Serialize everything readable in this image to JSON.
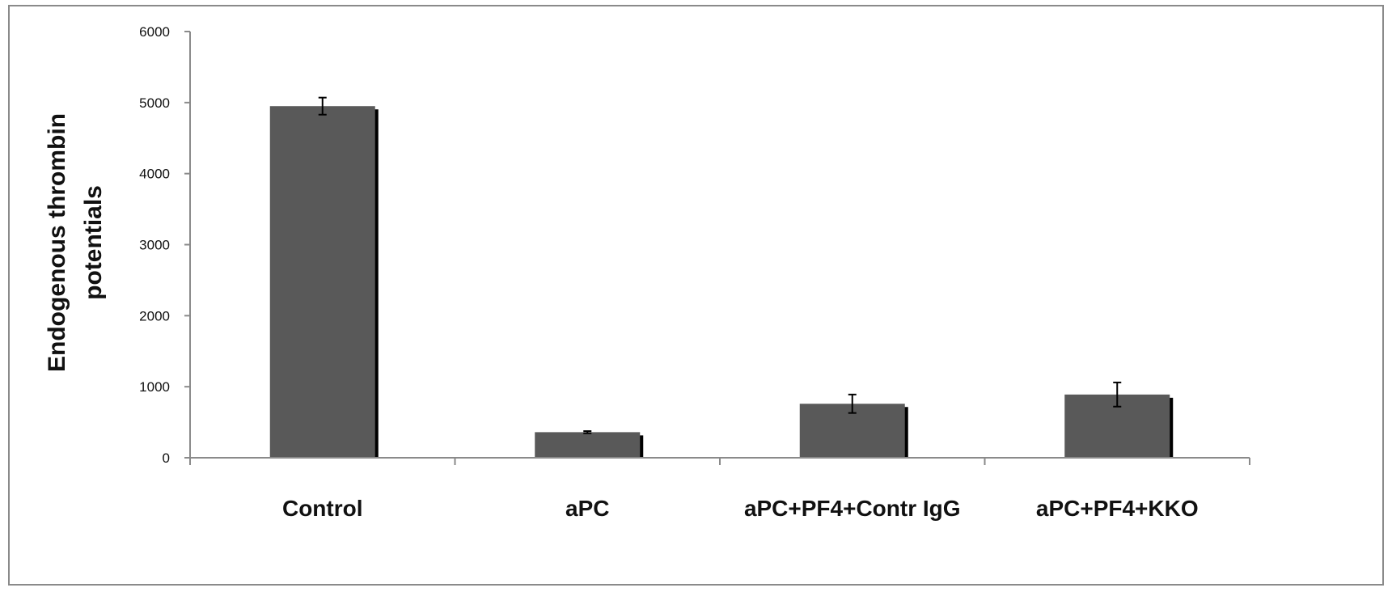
{
  "chart_data": {
    "type": "bar",
    "title": "",
    "xlabel": "",
    "ylabel_lines": [
      "Endogenous thrombin",
      "potentials"
    ],
    "categories": [
      "Control",
      "aPC",
      "aPC+PF4+Contr IgG",
      "aPC+PF4+KKO"
    ],
    "values": [
      4950,
      360,
      760,
      890
    ],
    "errors": [
      120,
      15,
      130,
      170
    ],
    "ylim": [
      0,
      6000
    ],
    "yticks": [
      "0",
      "1000",
      "2000",
      "3000",
      "4000",
      "5000",
      "6000"
    ],
    "grid": false,
    "bar_color": "#595959",
    "shadow_color": "#000000"
  }
}
